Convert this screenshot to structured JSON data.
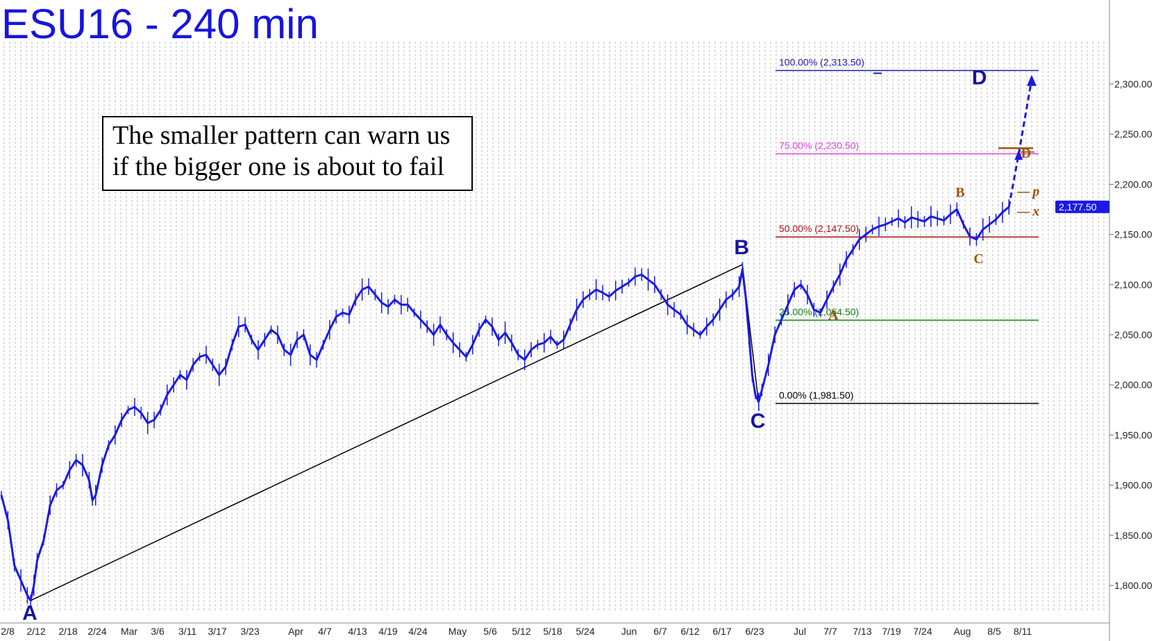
{
  "chart_data": {
    "type": "line",
    "title": "ESU16 - 240 min",
    "annotation": [
      "The smaller pattern can warn us",
      "if the bigger one is about to fail"
    ],
    "x_tick_labels": [
      "2/8",
      "2/12",
      "2/18",
      "2/24",
      "Mar",
      "3/6",
      "3/11",
      "3/17",
      "3/23",
      "Apr",
      "4/7",
      "4/13",
      "4/19",
      "4/24",
      "May",
      "5/6",
      "5/12",
      "5/18",
      "5/24",
      "Jun",
      "6/7",
      "6/12",
      "6/17",
      "6/23",
      "Jul",
      "7/7",
      "7/13",
      "7/19",
      "7/24",
      "Aug",
      "8/5",
      "8/11"
    ],
    "y_tick_labels": [
      "1,800.00",
      "1,850.00",
      "1,900.00",
      "1,950.00",
      "2,000.00",
      "2,050.00",
      "2,100.00",
      "2,150.00",
      "2,200.00",
      "2,250.00",
      "2,300.00"
    ],
    "y_ticks": [
      1800,
      1850,
      1900,
      1950,
      2000,
      2050,
      2100,
      2150,
      2200,
      2250,
      2300
    ],
    "ylim": [
      1778,
      2370
    ],
    "last_price": {
      "value": 2177.5,
      "label": "2,177.50"
    },
    "price_series": {
      "name": "ESU16",
      "color": "#1a1ae6",
      "points": [
        [
          0,
          1890
        ],
        [
          2,
          1865
        ],
        [
          4,
          1820
        ],
        [
          6,
          1805
        ],
        [
          8,
          1790
        ],
        [
          9,
          1785
        ],
        [
          10,
          1800
        ],
        [
          11,
          1825
        ],
        [
          13,
          1845
        ],
        [
          15,
          1880
        ],
        [
          17,
          1895
        ],
        [
          19,
          1900
        ],
        [
          21,
          1915
        ],
        [
          23,
          1925
        ],
        [
          25,
          1920
        ],
        [
          27,
          1905
        ],
        [
          28,
          1885
        ],
        [
          29,
          1890
        ],
        [
          31,
          1920
        ],
        [
          33,
          1940
        ],
        [
          35,
          1950
        ],
        [
          37,
          1965
        ],
        [
          39,
          1975
        ],
        [
          41,
          1978
        ],
        [
          43,
          1972
        ],
        [
          45,
          1962
        ],
        [
          47,
          1965
        ],
        [
          49,
          1975
        ],
        [
          51,
          1990
        ],
        [
          53,
          2000
        ],
        [
          55,
          2010
        ],
        [
          57,
          2005
        ],
        [
          59,
          2020
        ],
        [
          61,
          2028
        ],
        [
          63,
          2030
        ],
        [
          65,
          2020
        ],
        [
          67,
          2010
        ],
        [
          69,
          2018
        ],
        [
          71,
          2040
        ],
        [
          73,
          2058
        ],
        [
          75,
          2060
        ],
        [
          77,
          2045
        ],
        [
          79,
          2035
        ],
        [
          81,
          2045
        ],
        [
          83,
          2055
        ],
        [
          85,
          2050
        ],
        [
          87,
          2035
        ],
        [
          89,
          2030
        ],
        [
          91,
          2045
        ],
        [
          93,
          2050
        ],
        [
          95,
          2030
        ],
        [
          97,
          2025
        ],
        [
          99,
          2040
        ],
        [
          101,
          2055
        ],
        [
          103,
          2068
        ],
        [
          105,
          2072
        ],
        [
          107,
          2070
        ],
        [
          109,
          2085
        ],
        [
          111,
          2095
        ],
        [
          113,
          2098
        ],
        [
          115,
          2090
        ],
        [
          117,
          2082
        ],
        [
          119,
          2078
        ],
        [
          121,
          2085
        ],
        [
          123,
          2080
        ],
        [
          125,
          2080
        ],
        [
          127,
          2072
        ],
        [
          129,
          2065
        ],
        [
          131,
          2058
        ],
        [
          133,
          2050
        ],
        [
          135,
          2060
        ],
        [
          137,
          2050
        ],
        [
          139,
          2042
        ],
        [
          141,
          2035
        ],
        [
          143,
          2028
        ],
        [
          145,
          2040
        ],
        [
          147,
          2055
        ],
        [
          149,
          2065
        ],
        [
          151,
          2058
        ],
        [
          153,
          2045
        ],
        [
          155,
          2052
        ],
        [
          157,
          2042
        ],
        [
          159,
          2030
        ],
        [
          161,
          2025
        ],
        [
          163,
          2035
        ],
        [
          165,
          2040
        ],
        [
          167,
          2042
        ],
        [
          169,
          2048
        ],
        [
          171,
          2040
        ],
        [
          173,
          2045
        ],
        [
          175,
          2060
        ],
        [
          177,
          2075
        ],
        [
          179,
          2085
        ],
        [
          181,
          2090
        ],
        [
          183,
          2095
        ],
        [
          185,
          2092
        ],
        [
          187,
          2088
        ],
        [
          189,
          2094
        ],
        [
          191,
          2098
        ],
        [
          193,
          2102
        ],
        [
          195,
          2108
        ],
        [
          197,
          2110
        ],
        [
          199,
          2105
        ],
        [
          201,
          2100
        ],
        [
          203,
          2090
        ],
        [
          205,
          2080
        ],
        [
          207,
          2075
        ],
        [
          209,
          2070
        ],
        [
          211,
          2060
        ],
        [
          213,
          2055
        ],
        [
          215,
          2050
        ],
        [
          217,
          2058
        ],
        [
          219,
          2065
        ],
        [
          221,
          2075
        ],
        [
          223,
          2085
        ],
        [
          225,
          2090
        ],
        [
          227,
          2098
        ],
        [
          228,
          2115
        ],
        [
          229,
          2088
        ],
        [
          230,
          2050
        ],
        [
          231,
          2010
        ],
        [
          232,
          1990
        ],
        [
          233,
          1983
        ],
        [
          234,
          1995
        ],
        [
          236,
          2020
        ],
        [
          238,
          2050
        ],
        [
          240,
          2065
        ],
        [
          242,
          2080
        ],
        [
          244,
          2095
        ],
        [
          246,
          2100
        ],
        [
          248,
          2090
        ],
        [
          250,
          2075
        ],
        [
          252,
          2072
        ],
        [
          254,
          2085
        ],
        [
          256,
          2098
        ],
        [
          258,
          2110
        ],
        [
          260,
          2125
        ],
        [
          262,
          2135
        ],
        [
          264,
          2145
        ],
        [
          266,
          2150
        ],
        [
          268,
          2155
        ],
        [
          270,
          2158
        ],
        [
          272,
          2160
        ],
        [
          274,
          2163
        ],
        [
          276,
          2166
        ],
        [
          278,
          2162
        ],
        [
          280,
          2167
        ],
        [
          282,
          2165
        ],
        [
          284,
          2163
        ],
        [
          286,
          2168
        ],
        [
          288,
          2166
        ],
        [
          290,
          2164
        ],
        [
          292,
          2170
        ],
        [
          294,
          2175
        ],
        [
          296,
          2160
        ],
        [
          298,
          2148
        ],
        [
          300,
          2145
        ],
        [
          302,
          2155
        ],
        [
          304,
          2160
        ],
        [
          306,
          2165
        ],
        [
          308,
          2172
        ],
        [
          310,
          2177.5
        ]
      ],
      "projection": [
        [
          310,
          2177.5
        ],
        [
          313,
          2230
        ],
        [
          317,
          2305
        ]
      ]
    },
    "trendlines": [
      {
        "from": [
          9,
          1785
        ],
        "to": [
          228,
          2120
        ],
        "color": "#000000"
      }
    ],
    "fib_levels": [
      {
        "label": "100.00% (2,313.50)",
        "value": 2313.5,
        "color": "#1a1ab0"
      },
      {
        "label": "75.00% (2,230.50)",
        "value": 2230.5,
        "color": "#e040e0"
      },
      {
        "label": "50.00% (2,147.50)",
        "value": 2147.5,
        "color": "#b01010"
      },
      {
        "label": "25.00% (2,064.50)",
        "value": 2064.5,
        "color": "#108010"
      },
      {
        "label": "0.00% (1,981.50)",
        "value": 1981.5,
        "color": "#000000"
      }
    ],
    "big_pattern_labels": [
      {
        "label": "A",
        "x": 9,
        "y": 1785
      },
      {
        "label": "B",
        "x": 228,
        "y": 2120
      },
      {
        "label": "C",
        "x": 233,
        "y": 1981.5
      },
      {
        "label": "D",
        "x": 299,
        "y": 2313.5
      }
    ],
    "small_pattern_labels": [
      {
        "label": "A",
        "x": 254,
        "y": 2072
      },
      {
        "label": "B",
        "x": 294,
        "y": 2175
      },
      {
        "label": "C",
        "x": 300,
        "y": 2145
      },
      {
        "label": "D",
        "x": 318,
        "y": 2235
      }
    ],
    "small_pattern_marks": [
      {
        "label": "p",
        "x": 313,
        "y": 2190
      },
      {
        "label": "x",
        "x": 313,
        "y": 2170
      }
    ],
    "small_target_level": {
      "value": 2236,
      "color": "#a0520a"
    }
  }
}
